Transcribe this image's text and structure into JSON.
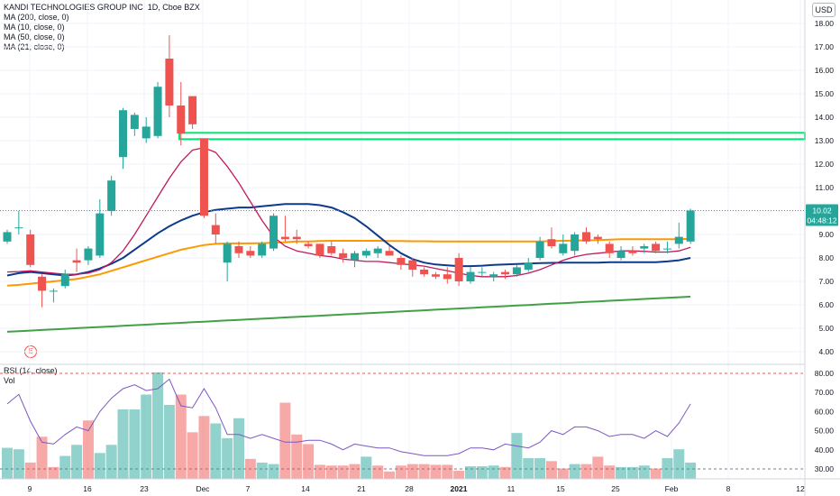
{
  "legend": {
    "title": "KANDI TECHNOLOGIES GROUP INC, 1D, Cboe BZX",
    "ma200": "MA (200, close, 0)",
    "ma10": "MA (10, close, 0)",
    "ma50": "MA (50, close, 0)",
    "ma21": "MA (21, close, 0)",
    "rsi": "RSI (14, close)",
    "vol": "Vol"
  },
  "currency": "USD",
  "earnings_marker": "E",
  "price_badge": {
    "price": "10.02",
    "countdown": "04:48:12"
  },
  "colors": {
    "up": "#26a69a",
    "down": "#ef5350",
    "ma200": "#43a047",
    "ma50": "#ff9800",
    "ma21": "#0d3a8a",
    "ma10": "#c2185b",
    "rsi": "#7e57c2",
    "hline": "#00e676"
  },
  "chart_data": {
    "type": "candlestick",
    "title": "KANDI TECHNOLOGIES GROUP INC, 1D, Cboe BZX",
    "price_axis": {
      "ticks": [
        "4.00",
        "5.00",
        "6.00",
        "7.00",
        "8.00",
        "9.00",
        "10.00",
        "11.00",
        "12.00",
        "13.00",
        "14.00",
        "15.00",
        "16.00",
        "17.00",
        "18.00"
      ],
      "range": [
        3.6,
        18.5
      ]
    },
    "indicator_axis": {
      "ticks": [
        "30.00",
        "40.00",
        "50.00",
        "60.00",
        "70.00",
        "80.00"
      ],
      "range": [
        26,
        82
      ]
    },
    "x_ticks": [
      "9",
      "16",
      "23",
      "Dec",
      "7",
      "14",
      "21",
      "28",
      "2021",
      "11",
      "15",
      "25",
      "Feb",
      "8",
      "12"
    ],
    "candles": [
      {
        "o": 8.7,
        "h": 9.2,
        "l": 8.6,
        "c": 9.1
      },
      {
        "o": 9.3,
        "h": 10.0,
        "l": 9.0,
        "c": 9.3
      },
      {
        "o": 9.0,
        "h": 9.2,
        "l": 7.6,
        "c": 7.7
      },
      {
        "o": 7.2,
        "h": 7.3,
        "l": 5.9,
        "c": 6.6
      },
      {
        "o": 6.6,
        "h": 6.7,
        "l": 6.1,
        "c": 6.6
      },
      {
        "o": 6.8,
        "h": 7.5,
        "l": 6.7,
        "c": 7.3
      },
      {
        "o": 7.9,
        "h": 8.4,
        "l": 7.4,
        "c": 7.8
      },
      {
        "o": 7.9,
        "h": 8.5,
        "l": 7.7,
        "c": 8.4
      },
      {
        "o": 8.1,
        "h": 10.5,
        "l": 8.0,
        "c": 9.9
      },
      {
        "o": 10.0,
        "h": 11.5,
        "l": 9.8,
        "c": 11.3
      },
      {
        "o": 12.3,
        "h": 14.4,
        "l": 11.8,
        "c": 14.3
      },
      {
        "o": 13.5,
        "h": 14.2,
        "l": 13.2,
        "c": 14.1
      },
      {
        "o": 13.1,
        "h": 14.0,
        "l": 12.9,
        "c": 13.6
      },
      {
        "o": 13.2,
        "h": 15.5,
        "l": 13.1,
        "c": 15.3
      },
      {
        "o": 16.5,
        "h": 17.5,
        "l": 14.0,
        "c": 14.5
      },
      {
        "o": 14.5,
        "h": 15.5,
        "l": 12.8,
        "c": 13.3
      },
      {
        "o": 14.9,
        "h": 14.9,
        "l": 13.5,
        "c": 13.7
      },
      {
        "o": 13.1,
        "h": 13.1,
        "l": 9.7,
        "c": 9.8
      },
      {
        "o": 9.4,
        "h": 9.9,
        "l": 8.6,
        "c": 9.0
      },
      {
        "o": 7.8,
        "h": 8.7,
        "l": 7.0,
        "c": 8.6
      },
      {
        "o": 8.5,
        "h": 8.7,
        "l": 8.0,
        "c": 8.2
      },
      {
        "o": 8.3,
        "h": 8.5,
        "l": 8.0,
        "c": 8.1
      },
      {
        "o": 8.1,
        "h": 8.7,
        "l": 8.0,
        "c": 8.6
      },
      {
        "o": 8.4,
        "h": 9.9,
        "l": 8.3,
        "c": 9.8
      },
      {
        "o": 8.9,
        "h": 9.8,
        "l": 8.7,
        "c": 8.8
      },
      {
        "o": 8.9,
        "h": 9.2,
        "l": 8.6,
        "c": 8.8
      },
      {
        "o": 8.6,
        "h": 8.7,
        "l": 8.4,
        "c": 8.5
      },
      {
        "o": 8.6,
        "h": 8.6,
        "l": 8.0,
        "c": 8.1
      },
      {
        "o": 8.5,
        "h": 8.7,
        "l": 8.1,
        "c": 8.2
      },
      {
        "o": 8.2,
        "h": 8.4,
        "l": 7.8,
        "c": 8.0
      },
      {
        "o": 7.9,
        "h": 8.3,
        "l": 7.6,
        "c": 8.2
      },
      {
        "o": 8.1,
        "h": 8.4,
        "l": 8.0,
        "c": 8.3
      },
      {
        "o": 8.2,
        "h": 8.5,
        "l": 8.0,
        "c": 8.4
      },
      {
        "o": 8.3,
        "h": 8.5,
        "l": 8.1,
        "c": 8.1
      },
      {
        "o": 8.0,
        "h": 8.1,
        "l": 7.5,
        "c": 7.7
      },
      {
        "o": 7.9,
        "h": 8.0,
        "l": 7.2,
        "c": 7.5
      },
      {
        "o": 7.5,
        "h": 7.6,
        "l": 7.2,
        "c": 7.3
      },
      {
        "o": 7.3,
        "h": 7.4,
        "l": 7.1,
        "c": 7.2
      },
      {
        "o": 7.3,
        "h": 7.6,
        "l": 6.9,
        "c": 7.1
      },
      {
        "o": 8.0,
        "h": 8.2,
        "l": 6.8,
        "c": 7.0
      },
      {
        "o": 7.0,
        "h": 7.6,
        "l": 6.9,
        "c": 7.4
      },
      {
        "o": 7.4,
        "h": 7.6,
        "l": 7.2,
        "c": 7.4
      },
      {
        "o": 7.2,
        "h": 7.4,
        "l": 7.0,
        "c": 7.3
      },
      {
        "o": 7.4,
        "h": 7.5,
        "l": 7.1,
        "c": 7.3
      },
      {
        "o": 7.3,
        "h": 7.7,
        "l": 7.2,
        "c": 7.6
      },
      {
        "o": 7.5,
        "h": 8.0,
        "l": 7.4,
        "c": 7.8
      },
      {
        "o": 8.0,
        "h": 8.9,
        "l": 7.9,
        "c": 8.7
      },
      {
        "o": 8.8,
        "h": 9.3,
        "l": 8.4,
        "c": 8.5
      },
      {
        "o": 8.2,
        "h": 9.0,
        "l": 8.1,
        "c": 8.6
      },
      {
        "o": 8.3,
        "h": 9.1,
        "l": 8.1,
        "c": 9.0
      },
      {
        "o": 9.1,
        "h": 9.3,
        "l": 8.6,
        "c": 8.7
      },
      {
        "o": 8.9,
        "h": 9.0,
        "l": 8.6,
        "c": 8.8
      },
      {
        "o": 8.6,
        "h": 8.7,
        "l": 8.0,
        "c": 8.2
      },
      {
        "o": 8.0,
        "h": 8.5,
        "l": 7.9,
        "c": 8.3
      },
      {
        "o": 8.3,
        "h": 8.5,
        "l": 8.1,
        "c": 8.2
      },
      {
        "o": 8.4,
        "h": 8.6,
        "l": 8.2,
        "c": 8.5
      },
      {
        "o": 8.6,
        "h": 8.7,
        "l": 8.2,
        "c": 8.3
      },
      {
        "o": 8.4,
        "h": 8.7,
        "l": 8.2,
        "c": 8.4
      },
      {
        "o": 8.6,
        "h": 9.5,
        "l": 8.4,
        "c": 8.9
      },
      {
        "o": 8.7,
        "h": 10.1,
        "l": 8.6,
        "c": 10.02
      }
    ],
    "volume_up": [
      true,
      true,
      false,
      false,
      false,
      true,
      true,
      false,
      true,
      true,
      true,
      true,
      true,
      true,
      true,
      false,
      false,
      false,
      true,
      true,
      true,
      false,
      true,
      true,
      false,
      false,
      false,
      false,
      false,
      false,
      false,
      true,
      false,
      false,
      false,
      false,
      false,
      false,
      false,
      false,
      true,
      true,
      true,
      false,
      true,
      true,
      true,
      false,
      false,
      true,
      false,
      false,
      false,
      true,
      true,
      true,
      false,
      true,
      true,
      true
    ],
    "volume_relative": [
      0.42,
      0.4,
      0.22,
      0.57,
      0.16,
      0.31,
      0.46,
      0.79,
      0.35,
      0.46,
      0.94,
      0.94,
      1.14,
      1.44,
      1.0,
      1.14,
      0.63,
      0.85,
      0.75,
      0.55,
      0.82,
      0.27,
      0.22,
      0.2,
      1.03,
      0.6,
      0.47,
      0.19,
      0.18,
      0.18,
      0.2,
      0.3,
      0.18,
      0.1,
      0.18,
      0.2,
      0.2,
      0.19,
      0.19,
      0.11,
      0.17,
      0.17,
      0.18,
      0.16,
      0.62,
      0.28,
      0.28,
      0.24,
      0.14,
      0.2,
      0.2,
      0.3,
      0.18,
      0.16,
      0.16,
      0.18,
      0.14,
      0.28,
      0.4,
      0.22
    ],
    "rsi": [
      64,
      69,
      55,
      44,
      43,
      48,
      52,
      50,
      60,
      67,
      72,
      74,
      71,
      72,
      77,
      63,
      62,
      72,
      62,
      48,
      48,
      46,
      48,
      46,
      44,
      44,
      45,
      45,
      43,
      40,
      43,
      42,
      41,
      41,
      39,
      38,
      37,
      37,
      37,
      38,
      41,
      41,
      40,
      43,
      42,
      41,
      44,
      50,
      48,
      52,
      52,
      50,
      47,
      48,
      48,
      46,
      50,
      47,
      54,
      64
    ],
    "ma200": {
      "start": 4.85,
      "end": 6.35
    },
    "ma50": [
      6.82,
      6.85,
      6.9,
      6.95,
      7.0,
      7.05,
      7.1,
      7.2,
      7.3,
      7.45,
      7.6,
      7.75,
      7.9,
      8.05,
      8.2,
      8.35,
      8.45,
      8.55,
      8.6,
      8.62,
      8.62,
      8.62,
      8.63,
      8.65,
      8.67,
      8.7,
      8.7,
      8.72,
      8.73,
      8.73,
      8.73,
      8.73,
      8.73,
      8.72,
      8.72,
      8.71,
      8.71,
      8.7,
      8.7,
      8.7,
      8.7,
      8.7,
      8.7,
      8.7,
      8.7,
      8.7,
      8.7,
      8.72,
      8.73,
      8.74,
      8.75,
      8.76,
      8.78,
      8.8,
      8.8,
      8.8,
      8.8,
      8.8,
      8.8,
      8.82
    ],
    "ma21": [
      7.25,
      7.35,
      7.4,
      7.35,
      7.3,
      7.25,
      7.3,
      7.4,
      7.55,
      7.75,
      8.0,
      8.35,
      8.7,
      9.05,
      9.35,
      9.6,
      9.8,
      9.95,
      10.05,
      10.1,
      10.15,
      10.15,
      10.2,
      10.25,
      10.3,
      10.3,
      10.3,
      10.25,
      10.15,
      9.95,
      9.7,
      9.35,
      8.95,
      8.55,
      8.2,
      7.95,
      7.8,
      7.72,
      7.68,
      7.65,
      7.65,
      7.67,
      7.7,
      7.72,
      7.74,
      7.76,
      7.78,
      7.79,
      7.8,
      7.8,
      7.8,
      7.8,
      7.82,
      7.82,
      7.82,
      7.82,
      7.82,
      7.85,
      7.9,
      8.0
    ],
    "ma10": [
      7.4,
      7.42,
      7.45,
      7.4,
      7.35,
      7.3,
      7.3,
      7.35,
      7.5,
      7.8,
      8.3,
      9.0,
      9.8,
      10.6,
      11.4,
      12.1,
      12.6,
      12.7,
      12.5,
      11.9,
      11.2,
      10.4,
      9.6,
      8.9,
      8.5,
      8.3,
      8.2,
      8.1,
      8.05,
      7.95,
      7.9,
      7.85,
      7.85,
      7.8,
      7.75,
      7.7,
      7.65,
      7.55,
      7.45,
      7.35,
      7.25,
      7.2,
      7.2,
      7.2,
      7.25,
      7.35,
      7.5,
      7.7,
      7.9,
      8.05,
      8.15,
      8.2,
      8.25,
      8.3,
      8.3,
      8.28,
      8.25,
      8.25,
      8.3,
      8.45
    ],
    "horizontal_level": 13.2
  }
}
